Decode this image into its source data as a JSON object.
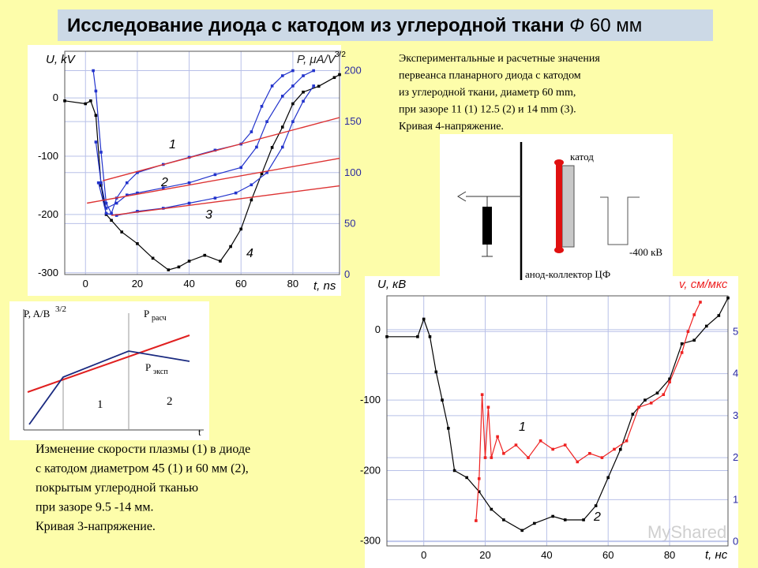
{
  "slide": {
    "title_main": "Исследование диода с катодом из углеродной ткани",
    "title_symbol": "Ф",
    "title_size": "60 мм",
    "caption_top": [
      "Экспериментальные и расчетные значения",
      "первеанса планарного диода с катодом",
      "из углеродной ткани, диаметр 60 mm,",
      "при зазоре 11 (1) 12.5 (2) и 14 mm (3).",
      "Кривая 4-напряжение."
    ],
    "caption_bottom": [
      "Изменение скорости плазмы (1) в диоде",
      "с катодом диаметром 45 (1) и 60  мм (2),",
      "покрытым углеродной тканью",
      "при зазоре 9.5 -14 мм.",
      "Кривая 3-напряжение."
    ],
    "watermark": "MyShared"
  },
  "schematic": {
    "cathode": "катод",
    "voltage": "-400 кВ",
    "anode": "анод-коллектор ЦФ"
  },
  "sketch": {
    "ylabel": "P, A/B",
    "ylabel_sup": "3/2",
    "calc": "P",
    "calc_sub": "расч",
    "exp": "P",
    "exp_sub": "эксп",
    "region1": "1",
    "region2": "2",
    "xlabel": "t"
  },
  "chart_data": [
    {
      "type": "line",
      "ylabel": "U, kV",
      "y2label": "P, μA/V",
      "y2label_sup": "3/2",
      "xlabel": "t, ns",
      "xlim": [
        -8,
        98
      ],
      "ylim": [
        -303,
        80
      ],
      "y2lim": [
        0,
        219
      ],
      "xticks": [
        0,
        20,
        40,
        60,
        80
      ],
      "yticks": [
        0,
        -100,
        -200,
        -300
      ],
      "y2ticks": [
        0,
        50,
        100,
        150,
        200
      ],
      "grid": true,
      "y2_tick_color": "#2a2aa0",
      "series": [
        {
          "name": "4",
          "color": "#000000",
          "markers": true,
          "x": [
            -8,
            0,
            2,
            4,
            6,
            8,
            10,
            14,
            20,
            26,
            32,
            36,
            40,
            46,
            52,
            56,
            60,
            64,
            68,
            72,
            76,
            80,
            84,
            90,
            96,
            98
          ],
          "values": [
            -5,
            -10,
            -5,
            -30,
            -150,
            -200,
            -210,
            -230,
            -250,
            -275,
            -295,
            -290,
            -280,
            -270,
            -280,
            -255,
            -225,
            -175,
            -130,
            -85,
            -50,
            -10,
            10,
            20,
            35,
            40
          ]
        },
        {
          "name": "1",
          "color": "#2233cc",
          "axis": "y2",
          "markers": true,
          "x": [
            3,
            4,
            6,
            8,
            10,
            12,
            16,
            20,
            30,
            40,
            50,
            60,
            64,
            68,
            72,
            76,
            80
          ],
          "values": [
            200,
            180,
            120,
            70,
            60,
            75,
            90,
            100,
            108,
            115,
            122,
            128,
            140,
            165,
            185,
            195,
            200
          ]
        },
        {
          "name": "2",
          "color": "#2233cc",
          "axis": "y2",
          "markers": true,
          "x": [
            4,
            6,
            8,
            12,
            16,
            20,
            30,
            40,
            50,
            60,
            66,
            70,
            76,
            80,
            84,
            88
          ],
          "values": [
            130,
            90,
            65,
            70,
            78,
            80,
            85,
            90,
            98,
            105,
            125,
            150,
            175,
            185,
            195,
            200
          ]
        },
        {
          "name": "3",
          "color": "#2233cc",
          "axis": "y2",
          "markers": true,
          "x": [
            5,
            8,
            12,
            20,
            30,
            40,
            50,
            58,
            64,
            70,
            76,
            80,
            84,
            88
          ],
          "values": [
            90,
            60,
            58,
            62,
            65,
            70,
            75,
            80,
            88,
            100,
            125,
            150,
            170,
            185
          ]
        },
        {
          "color": "#dd3333",
          "axis": "y2",
          "x": [
            6.7,
            98
          ],
          "values": [
            92,
            154
          ]
        },
        {
          "color": "#dd3333",
          "axis": "y2",
          "x": [
            0.6,
            98
          ],
          "values": [
            70,
            114
          ]
        },
        {
          "color": "#dd3333",
          "axis": "y2",
          "x": [
            10,
            98
          ],
          "values": [
            58,
            87
          ]
        }
      ]
    },
    {
      "type": "line",
      "ylabel": "U, кВ",
      "y2label": "v, см/мкс",
      "xlabel": "t, нс",
      "xlim": [
        -12,
        99
      ],
      "ylim": [
        -307,
        48
      ],
      "y2lim": [
        -0.1,
        5.85
      ],
      "xticks": [
        0,
        20,
        40,
        60,
        80
      ],
      "yticks": [
        0,
        -100,
        -200,
        -300
      ],
      "y2ticks": [
        0,
        1,
        2,
        3,
        4,
        5
      ],
      "grid": true,
      "y2_tick_color": "#2a2aa0",
      "y2label_color": "#ee2222",
      "series": [
        {
          "name": "2",
          "color": "#000000",
          "markers": true,
          "x": [
            -12,
            -2,
            0,
            2,
            4,
            6,
            8,
            10,
            14,
            18,
            22,
            26,
            32,
            36,
            42,
            46,
            52,
            56,
            60,
            64,
            68,
            72,
            76,
            80,
            84,
            88,
            92,
            96,
            99
          ],
          "values": [
            -10,
            -10,
            15,
            -10,
            -60,
            -100,
            -140,
            -200,
            -210,
            -230,
            -255,
            -270,
            -285,
            -275,
            -265,
            -270,
            -270,
            -250,
            -210,
            -170,
            -120,
            -100,
            -90,
            -70,
            -20,
            -15,
            5,
            20,
            45
          ]
        },
        {
          "name": "1",
          "color": "#ee2222",
          "axis": "y2",
          "markers": true,
          "x": [
            17,
            18,
            19,
            20,
            21,
            22,
            24,
            26,
            30,
            34,
            38,
            42,
            46,
            50,
            54,
            58,
            62,
            66,
            70,
            74,
            78,
            80,
            84,
            86,
            88,
            90
          ],
          "values": [
            0.5,
            1.5,
            3.5,
            2,
            3.2,
            2,
            2.5,
            2.1,
            2.3,
            2.0,
            2.4,
            2.2,
            2.3,
            1.9,
            2.1,
            2.0,
            2.2,
            2.4,
            3.2,
            3.3,
            3.5,
            3.8,
            4.5,
            5.0,
            5.4,
            5.7
          ]
        }
      ]
    }
  ]
}
